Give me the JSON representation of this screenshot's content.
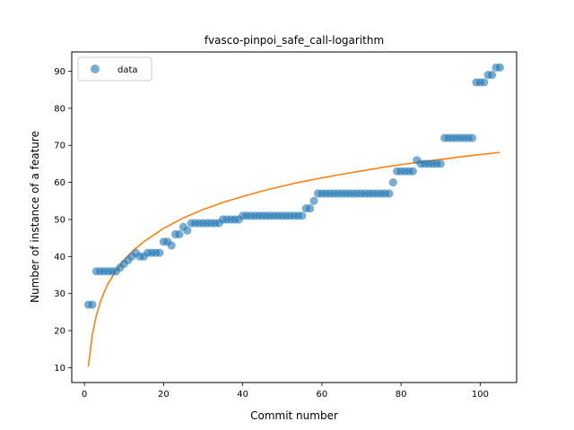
{
  "chart_data": {
    "type": "scatter",
    "title": "fvasco-pinpoi_safe_call-logarithm",
    "xlabel": "Commit number",
    "ylabel": "Number of instance of a feature",
    "xlim": [
      -3.2,
      109.2
    ],
    "ylim": [
      6.0,
      95.2
    ],
    "xticks": [
      0,
      20,
      40,
      60,
      80,
      100
    ],
    "yticks": [
      10,
      20,
      30,
      40,
      50,
      60,
      70,
      80,
      90
    ],
    "grid": false,
    "legend": {
      "position": "top-left",
      "entries": [
        "data"
      ]
    },
    "colors": {
      "data": "#1f77b4",
      "fit": "#ff7f0e"
    },
    "series": [
      {
        "name": "data",
        "kind": "scatter",
        "x": [
          1,
          2,
          3,
          4,
          5,
          6,
          7,
          8,
          9,
          10,
          11,
          12,
          13,
          14,
          15,
          16,
          17,
          18,
          19,
          20,
          21,
          22,
          23,
          24,
          25,
          26,
          27,
          28,
          29,
          30,
          31,
          32,
          33,
          34,
          35,
          36,
          37,
          38,
          39,
          40,
          41,
          42,
          43,
          44,
          45,
          46,
          47,
          48,
          49,
          50,
          51,
          52,
          53,
          54,
          55,
          56,
          57,
          58,
          59,
          60,
          61,
          62,
          63,
          64,
          65,
          66,
          67,
          68,
          69,
          70,
          71,
          72,
          73,
          74,
          75,
          76,
          77,
          78,
          79,
          80,
          81,
          82,
          83,
          84,
          85,
          86,
          87,
          88,
          89,
          90,
          91,
          92,
          93,
          94,
          95,
          96,
          97,
          98,
          99,
          100,
          101,
          102,
          103,
          104,
          105
        ],
        "y": [
          27,
          27,
          36,
          36,
          36,
          36,
          36,
          36,
          37,
          38,
          39,
          40,
          41,
          40,
          40,
          41,
          41,
          41,
          41,
          44,
          44,
          43,
          46,
          46,
          48,
          47,
          49,
          49,
          49,
          49,
          49,
          49,
          49,
          49,
          50,
          50,
          50,
          50,
          50,
          51,
          51,
          51,
          51,
          51,
          51,
          51,
          51,
          51,
          51,
          51,
          51,
          51,
          51,
          51,
          51,
          53,
          53,
          55,
          57,
          57,
          57,
          57,
          57,
          57,
          57,
          57,
          57,
          57,
          57,
          57,
          57,
          57,
          57,
          57,
          57,
          57,
          57,
          60,
          63,
          63,
          63,
          63,
          63,
          66,
          65,
          65,
          65,
          65,
          65,
          65,
          72,
          72,
          72,
          72,
          72,
          72,
          72,
          72,
          87,
          87,
          87,
          89,
          89,
          91,
          91
        ]
      },
      {
        "name": "",
        "kind": "line",
        "x": [
          1,
          2,
          3,
          4,
          5,
          6,
          8,
          10,
          12,
          15,
          20,
          25,
          30,
          35,
          40,
          45,
          50,
          55,
          60,
          65,
          70,
          75,
          80,
          85,
          90,
          95,
          100,
          105
        ],
        "y": [
          10.3,
          18.9,
          24.0,
          27.6,
          30.4,
          32.7,
          36.2,
          39.0,
          41.3,
          44.0,
          47.6,
          50.4,
          52.7,
          54.6,
          56.2,
          57.7,
          59.0,
          60.2,
          61.2,
          62.2,
          63.1,
          64.0,
          64.8,
          65.5,
          66.2,
          66.9,
          67.5,
          68.1
        ]
      }
    ]
  }
}
